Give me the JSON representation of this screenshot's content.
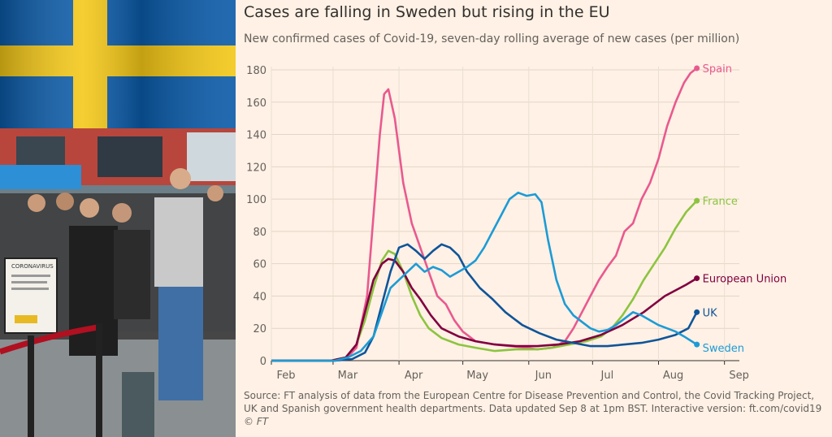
{
  "chart_data": {
    "type": "line",
    "title": "Cases are falling in Sweden but rising in the EU",
    "subtitle": "New confirmed cases of Covid-19, seven-day rolling average of new cases (per million)",
    "xlabel": "",
    "ylabel": "",
    "ylim": [
      0,
      180
    ],
    "y_ticks": [
      0,
      20,
      40,
      60,
      80,
      100,
      120,
      140,
      160,
      180
    ],
    "x_ticks": [
      "Feb",
      "Mar",
      "Apr",
      "May",
      "Jun",
      "Jul",
      "Aug",
      "Sep"
    ],
    "xlim_days": [
      0,
      220
    ],
    "grid": true,
    "series": [
      {
        "name": "Spain",
        "color": "#e9598f",
        "label_value": 181,
        "points": [
          [
            0,
            0
          ],
          [
            28,
            0
          ],
          [
            35,
            1
          ],
          [
            40,
            8
          ],
          [
            45,
            40
          ],
          [
            48,
            90
          ],
          [
            51,
            140
          ],
          [
            53,
            165
          ],
          [
            55,
            168
          ],
          [
            58,
            150
          ],
          [
            62,
            110
          ],
          [
            66,
            85
          ],
          [
            70,
            70
          ],
          [
            74,
            55
          ],
          [
            78,
            40
          ],
          [
            82,
            35
          ],
          [
            86,
            25
          ],
          [
            90,
            18
          ],
          [
            96,
            12
          ],
          [
            105,
            10
          ],
          [
            112,
            9
          ],
          [
            120,
            8
          ],
          [
            125,
            7
          ],
          [
            132,
            8
          ],
          [
            138,
            12
          ],
          [
            142,
            20
          ],
          [
            146,
            30
          ],
          [
            150,
            40
          ],
          [
            154,
            50
          ],
          [
            158,
            58
          ],
          [
            162,
            65
          ],
          [
            166,
            80
          ],
          [
            170,
            85
          ],
          [
            174,
            100
          ],
          [
            178,
            110
          ],
          [
            182,
            125
          ],
          [
            186,
            145
          ],
          [
            190,
            160
          ],
          [
            194,
            172
          ],
          [
            197,
            178
          ],
          [
            200,
            181
          ]
        ]
      },
      {
        "name": "France",
        "color": "#8cc440",
        "label_value": 99,
        "points": [
          [
            0,
            0
          ],
          [
            28,
            0
          ],
          [
            35,
            2
          ],
          [
            40,
            10
          ],
          [
            44,
            25
          ],
          [
            48,
            45
          ],
          [
            52,
            62
          ],
          [
            55,
            68
          ],
          [
            58,
            66
          ],
          [
            62,
            55
          ],
          [
            66,
            40
          ],
          [
            70,
            28
          ],
          [
            74,
            20
          ],
          [
            80,
            14
          ],
          [
            88,
            10
          ],
          [
            96,
            8
          ],
          [
            105,
            6
          ],
          [
            115,
            7
          ],
          [
            125,
            7
          ],
          [
            132,
            8
          ],
          [
            140,
            10
          ],
          [
            148,
            12
          ],
          [
            155,
            15
          ],
          [
            160,
            20
          ],
          [
            165,
            28
          ],
          [
            170,
            38
          ],
          [
            175,
            50
          ],
          [
            180,
            60
          ],
          [
            185,
            70
          ],
          [
            190,
            82
          ],
          [
            195,
            92
          ],
          [
            200,
            99
          ]
        ]
      },
      {
        "name": "European Union",
        "color": "#800040",
        "label_value": 51,
        "points": [
          [
            0,
            0
          ],
          [
            28,
            0
          ],
          [
            35,
            2
          ],
          [
            40,
            10
          ],
          [
            44,
            30
          ],
          [
            48,
            50
          ],
          [
            52,
            60
          ],
          [
            55,
            63
          ],
          [
            58,
            62
          ],
          [
            62,
            55
          ],
          [
            66,
            45
          ],
          [
            70,
            38
          ],
          [
            75,
            28
          ],
          [
            80,
            20
          ],
          [
            88,
            15
          ],
          [
            96,
            12
          ],
          [
            105,
            10
          ],
          [
            115,
            9
          ],
          [
            125,
            9
          ],
          [
            135,
            10
          ],
          [
            145,
            12
          ],
          [
            155,
            16
          ],
          [
            165,
            22
          ],
          [
            175,
            30
          ],
          [
            185,
            40
          ],
          [
            195,
            47
          ],
          [
            200,
            51
          ]
        ]
      },
      {
        "name": "UK",
        "color": "#0f5499",
        "label_value": 30,
        "points": [
          [
            0,
            0
          ],
          [
            30,
            0
          ],
          [
            38,
            1
          ],
          [
            44,
            5
          ],
          [
            48,
            15
          ],
          [
            52,
            35
          ],
          [
            56,
            55
          ],
          [
            60,
            70
          ],
          [
            64,
            72
          ],
          [
            68,
            68
          ],
          [
            72,
            63
          ],
          [
            76,
            68
          ],
          [
            80,
            72
          ],
          [
            84,
            70
          ],
          [
            88,
            65
          ],
          [
            92,
            55
          ],
          [
            98,
            45
          ],
          [
            104,
            38
          ],
          [
            110,
            30
          ],
          [
            118,
            22
          ],
          [
            126,
            17
          ],
          [
            134,
            13
          ],
          [
            142,
            11
          ],
          [
            150,
            9
          ],
          [
            158,
            9
          ],
          [
            166,
            10
          ],
          [
            174,
            11
          ],
          [
            182,
            13
          ],
          [
            190,
            16
          ],
          [
            196,
            20
          ],
          [
            200,
            30
          ]
        ]
      },
      {
        "name": "Sweden",
        "color": "#1c9bd6",
        "label_value": 10,
        "points": [
          [
            0,
            0
          ],
          [
            30,
            0
          ],
          [
            36,
            2
          ],
          [
            42,
            6
          ],
          [
            48,
            15
          ],
          [
            52,
            30
          ],
          [
            56,
            45
          ],
          [
            60,
            50
          ],
          [
            64,
            55
          ],
          [
            68,
            60
          ],
          [
            72,
            55
          ],
          [
            76,
            58
          ],
          [
            80,
            56
          ],
          [
            84,
            52
          ],
          [
            88,
            55
          ],
          [
            92,
            58
          ],
          [
            96,
            62
          ],
          [
            100,
            70
          ],
          [
            104,
            80
          ],
          [
            108,
            90
          ],
          [
            112,
            100
          ],
          [
            116,
            104
          ],
          [
            120,
            102
          ],
          [
            124,
            103
          ],
          [
            127,
            98
          ],
          [
            130,
            75
          ],
          [
            134,
            50
          ],
          [
            138,
            35
          ],
          [
            142,
            28
          ],
          [
            146,
            24
          ],
          [
            150,
            20
          ],
          [
            154,
            18
          ],
          [
            158,
            19
          ],
          [
            162,
            22
          ],
          [
            166,
            26
          ],
          [
            170,
            30
          ],
          [
            174,
            28
          ],
          [
            178,
            25
          ],
          [
            182,
            22
          ],
          [
            186,
            20
          ],
          [
            190,
            18
          ],
          [
            194,
            15
          ],
          [
            200,
            10
          ]
        ]
      }
    ]
  },
  "source": {
    "text": "Source: FT analysis of data from the European Centre for Disease Prevention and Control, the Covid Tracking Project, UK and Spanish government health departments. Data updated Sep 8 at 1pm BST. Interactive version: ft.com/covid19",
    "copyright": "© FT"
  },
  "photo": {
    "sign_heading": "CORONAVIRUS",
    "flag_blue": "#0a5aa8",
    "flag_yellow": "#f3c716"
  }
}
